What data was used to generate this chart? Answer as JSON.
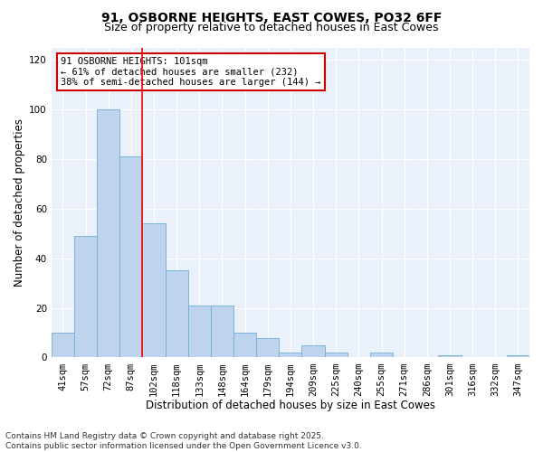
{
  "title_line1": "91, OSBORNE HEIGHTS, EAST COWES, PO32 6FF",
  "title_line2": "Size of property relative to detached houses in East Cowes",
  "xlabel": "Distribution of detached houses by size in East Cowes",
  "ylabel": "Number of detached properties",
  "categories": [
    "41sqm",
    "57sqm",
    "72sqm",
    "87sqm",
    "102sqm",
    "118sqm",
    "133sqm",
    "148sqm",
    "164sqm",
    "179sqm",
    "194sqm",
    "209sqm",
    "225sqm",
    "240sqm",
    "255sqm",
    "271sqm",
    "286sqm",
    "301sqm",
    "316sqm",
    "332sqm",
    "347sqm"
  ],
  "values": [
    10,
    49,
    100,
    81,
    54,
    35,
    21,
    21,
    10,
    8,
    2,
    5,
    2,
    0,
    2,
    0,
    0,
    1,
    0,
    0,
    1
  ],
  "bar_color": "#BDD4EC",
  "bar_edgecolor": "#6BAED6",
  "red_line_index": 4,
  "annotation_text_line1": "91 OSBORNE HEIGHTS: 101sqm",
  "annotation_text_line2": "← 61% of detached houses are smaller (232)",
  "annotation_text_line3": "38% of semi-detached houses are larger (144) →",
  "annotation_box_color": "#ffffff",
  "annotation_box_edgecolor": "#cc0000",
  "ylim": [
    0,
    125
  ],
  "yticks": [
    0,
    20,
    40,
    60,
    80,
    100,
    120
  ],
  "bg_color": "#EAF1FA",
  "footer_line1": "Contains HM Land Registry data © Crown copyright and database right 2025.",
  "footer_line2": "Contains public sector information licensed under the Open Government Licence v3.0.",
  "title_fontsize": 10,
  "subtitle_fontsize": 9,
  "axis_label_fontsize": 8.5,
  "tick_fontsize": 7.5,
  "annotation_fontsize": 7.5,
  "footer_fontsize": 6.5
}
